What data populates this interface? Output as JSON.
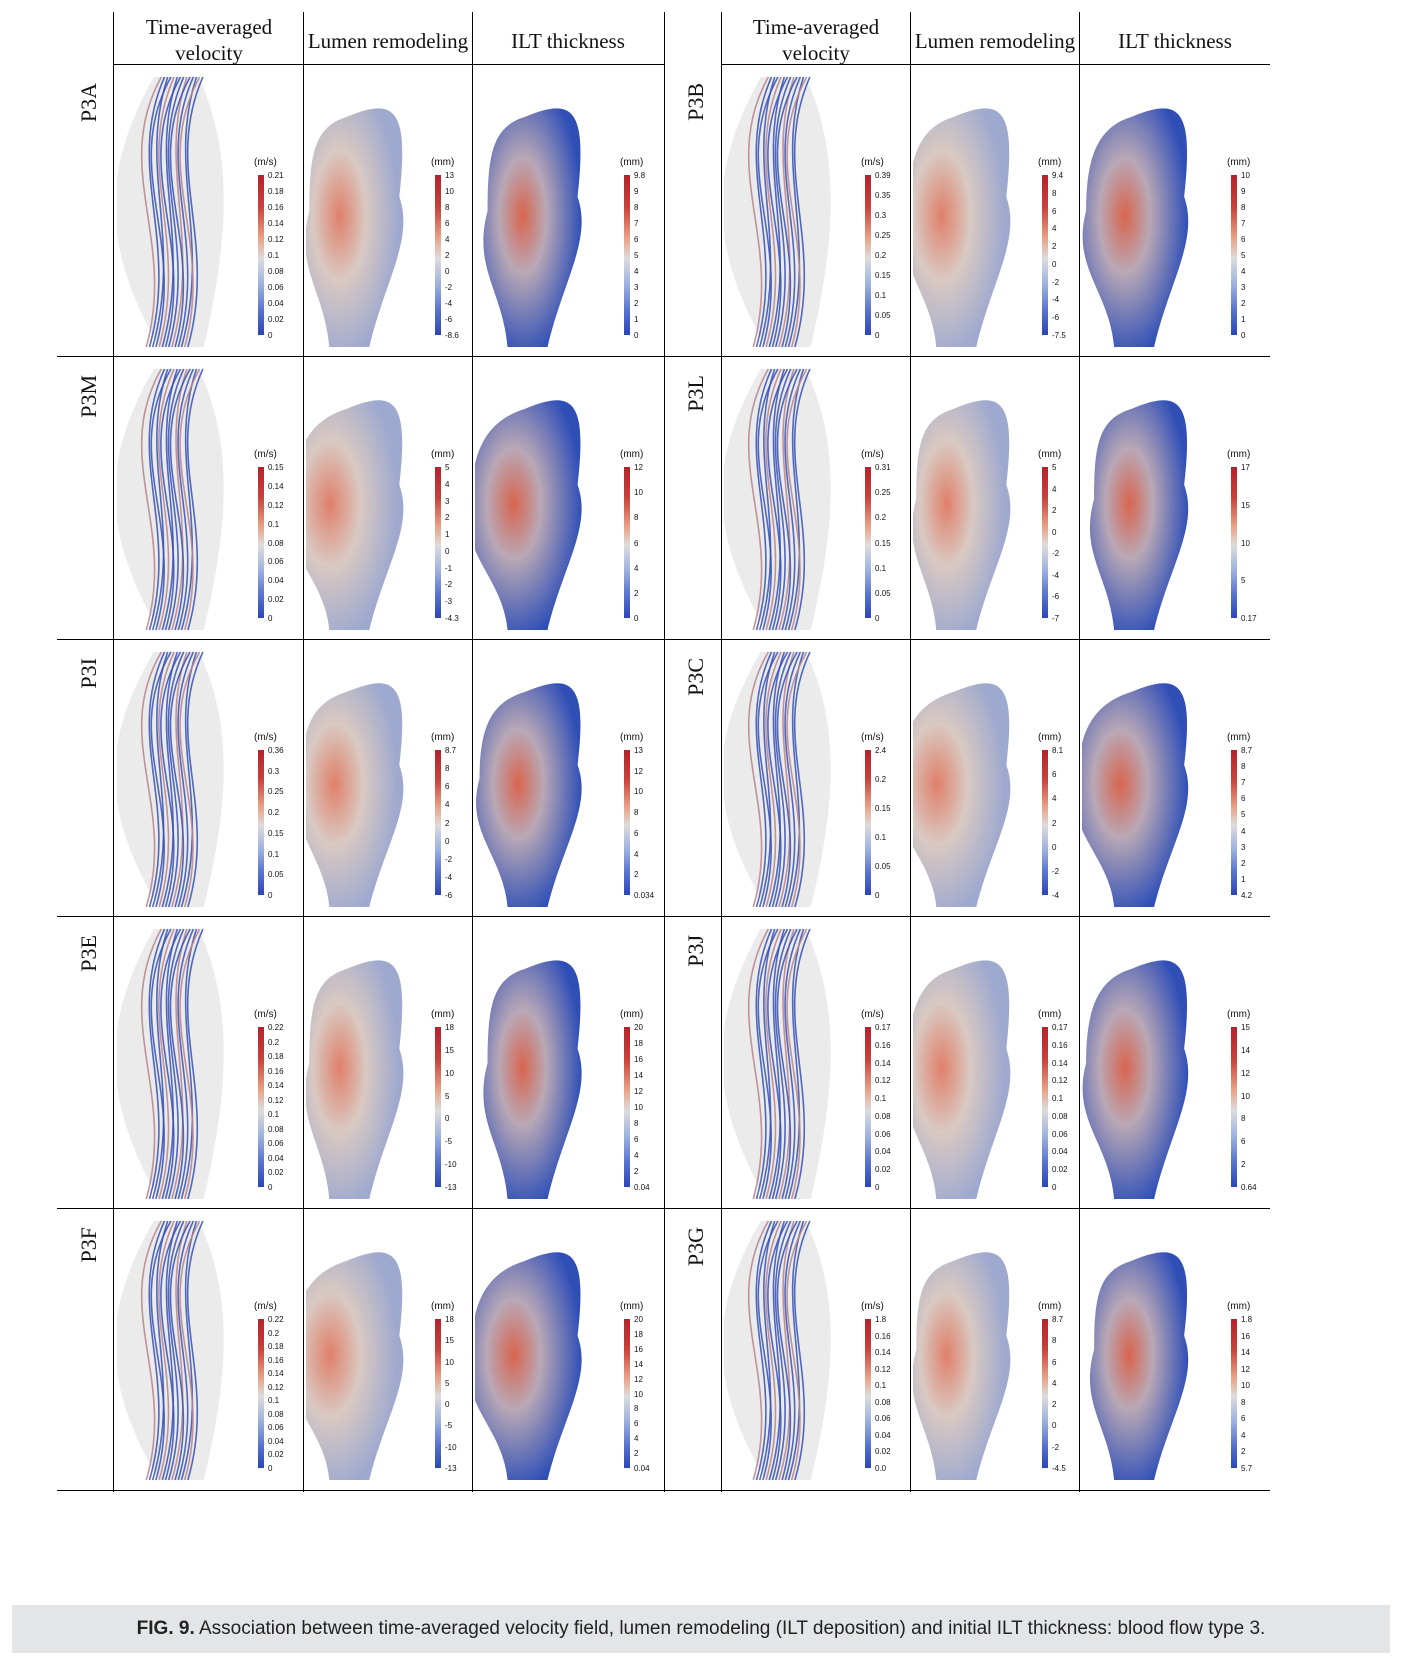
{
  "figure": {
    "column_headers": [
      "Time-averaged velocity",
      "Lumen remodeling",
      "ILT thickness"
    ],
    "caption_label": "FIG. 9.",
    "caption_text": "Association between time-averaged velocity field, lumen remodeling (ILT deposition) and initial ILT thickness: blood flow type 3.",
    "colors": {
      "high": "#b5222b",
      "mid": "#dcdcdc",
      "low": "#2a46b8",
      "accent_red": "#c8413a"
    },
    "rows": [
      {
        "left": {
          "label": "P3A",
          "velocity": {
            "unit": "(m/s)",
            "ticks": [
              "0.21",
              "0.18",
              "0.16",
              "0.14",
              "0.12",
              "0.1",
              "0.08",
              "0.06",
              "0.04",
              "0.02",
              "0"
            ]
          },
          "lumen": {
            "unit": "(mm)",
            "ticks": [
              "13",
              "10",
              "8",
              "6",
              "4",
              "2",
              "0",
              "-2",
              "-4",
              "-6",
              "-8.6"
            ]
          },
          "ilt": {
            "unit": "(mm)",
            "ticks": [
              "9.8",
              "9",
              "8",
              "7",
              "6",
              "5",
              "4",
              "3",
              "2",
              "1",
              "0"
            ]
          }
        },
        "right": {
          "label": "P3B",
          "velocity": {
            "unit": "(m/s)",
            "ticks": [
              "0.39",
              "0.35",
              "0.3",
              "0.25",
              "0.2",
              "0.15",
              "0.1",
              "0.05",
              "0"
            ]
          },
          "lumen": {
            "unit": "(mm)",
            "ticks": [
              "9.4",
              "8",
              "6",
              "4",
              "2",
              "0",
              "-2",
              "-4",
              "-6",
              "-7.5"
            ]
          },
          "ilt": {
            "unit": "(mm)",
            "ticks": [
              "10",
              "9",
              "8",
              "7",
              "6",
              "5",
              "4",
              "3",
              "2",
              "1",
              "0"
            ]
          }
        }
      },
      {
        "left": {
          "label": "P3M",
          "velocity": {
            "unit": "(m/s)",
            "ticks": [
              "0.15",
              "0.14",
              "0.12",
              "0.1",
              "0.08",
              "0.06",
              "0.04",
              "0.02",
              "0"
            ]
          },
          "lumen": {
            "unit": "(mm)",
            "ticks": [
              "5",
              "4",
              "3",
              "2",
              "1",
              "0",
              "-1",
              "-2",
              "-3",
              "-4.3"
            ]
          },
          "ilt": {
            "unit": "(mm)",
            "ticks": [
              "12",
              "10",
              "8",
              "6",
              "4",
              "2",
              "0"
            ]
          }
        },
        "right": {
          "label": "P3L",
          "velocity": {
            "unit": "(m/s)",
            "ticks": [
              "0.31",
              "0.25",
              "0.2",
              "0.15",
              "0.1",
              "0.05",
              "0"
            ]
          },
          "lumen": {
            "unit": "(mm)",
            "ticks": [
              "5",
              "4",
              "2",
              "0",
              "-2",
              "-4",
              "-6",
              "-7"
            ]
          },
          "ilt": {
            "unit": "(mm)",
            "ticks": [
              "17",
              "15",
              "10",
              "5",
              "0.17"
            ]
          }
        }
      },
      {
        "left": {
          "label": "P3I",
          "velocity": {
            "unit": "(m/s)",
            "ticks": [
              "0.36",
              "0.3",
              "0.25",
              "0.2",
              "0.15",
              "0.1",
              "0.05",
              "0"
            ]
          },
          "lumen": {
            "unit": "(mm)",
            "ticks": [
              "8.7",
              "8",
              "6",
              "4",
              "2",
              "0",
              "-2",
              "-4",
              "-6"
            ]
          },
          "ilt": {
            "unit": "(mm)",
            "ticks": [
              "13",
              "12",
              "10",
              "8",
              "6",
              "4",
              "2",
              "0.034"
            ]
          }
        },
        "right": {
          "label": "P3C",
          "velocity": {
            "unit": "(m/s)",
            "ticks": [
              "2.4",
              "0.2",
              "0.15",
              "0.1",
              "0.05",
              "0"
            ]
          },
          "lumen": {
            "unit": "(mm)",
            "ticks": [
              "8.1",
              "6",
              "4",
              "2",
              "0",
              "-2",
              "-4"
            ]
          },
          "ilt": {
            "unit": "(mm)",
            "ticks": [
              "8.7",
              "8",
              "7",
              "6",
              "5",
              "4",
              "3",
              "2",
              "1",
              "4.2"
            ]
          }
        }
      },
      {
        "left": {
          "label": "P3E",
          "velocity": {
            "unit": "(m/s)",
            "ticks": [
              "0.22",
              "0.2",
              "0.18",
              "0.16",
              "0.14",
              "0.12",
              "0.1",
              "0.08",
              "0.06",
              "0.04",
              "0.02",
              "0"
            ]
          },
          "lumen": {
            "unit": "(mm)",
            "ticks": [
              "18",
              "15",
              "10",
              "5",
              "0",
              "-5",
              "-10",
              "-13"
            ]
          },
          "ilt": {
            "unit": "(mm)",
            "ticks": [
              "20",
              "18",
              "16",
              "14",
              "12",
              "10",
              "8",
              "6",
              "4",
              "2",
              "0.04"
            ]
          }
        },
        "right": {
          "label": "P3J",
          "velocity": {
            "unit": "(m/s)",
            "ticks": [
              "0.17",
              "0.16",
              "0.14",
              "0.12",
              "0.1",
              "0.08",
              "0.06",
              "0.04",
              "0.02",
              "0"
            ]
          },
          "lumen": {
            "unit": "(mm)",
            "ticks": [
              "0.17",
              "0.16",
              "0.14",
              "0.12",
              "0.1",
              "0.08",
              "0.06",
              "0.04",
              "0.02",
              "0"
            ]
          },
          "ilt": {
            "unit": "(mm)",
            "ticks": [
              "15",
              "14",
              "12",
              "10",
              "8",
              "6",
              "2",
              "0.64"
            ]
          }
        }
      },
      {
        "left": {
          "label": "P3F",
          "velocity": {
            "unit": "(m/s)",
            "ticks": [
              "0.22",
              "0.2",
              "0.18",
              "0.16",
              "0.14",
              "0.12",
              "0.1",
              "0.08",
              "0.06",
              "0.04",
              "0.02",
              "0"
            ]
          },
          "lumen": {
            "unit": "(mm)",
            "ticks": [
              "18",
              "15",
              "10",
              "5",
              "0",
              "-5",
              "-10",
              "-13"
            ]
          },
          "ilt": {
            "unit": "(mm)",
            "ticks": [
              "20",
              "18",
              "16",
              "14",
              "12",
              "10",
              "8",
              "6",
              "4",
              "2",
              "0.04"
            ]
          }
        },
        "right": {
          "label": "P3G",
          "velocity": {
            "unit": "(m/s)",
            "ticks": [
              "1.8",
              "0.16",
              "0.14",
              "0.12",
              "0.1",
              "0.08",
              "0.06",
              "0.04",
              "0.02",
              "0.0"
            ]
          },
          "lumen": {
            "unit": "(mm)",
            "ticks": [
              "8.7",
              "8",
              "6",
              "4",
              "2",
              "0",
              "-2",
              "-4.5"
            ]
          },
          "ilt": {
            "unit": "(mm)",
            "ticks": [
              "1.8",
              "16",
              "14",
              "12",
              "10",
              "8",
              "6",
              "4",
              "2",
              "5.7"
            ]
          }
        }
      }
    ]
  }
}
